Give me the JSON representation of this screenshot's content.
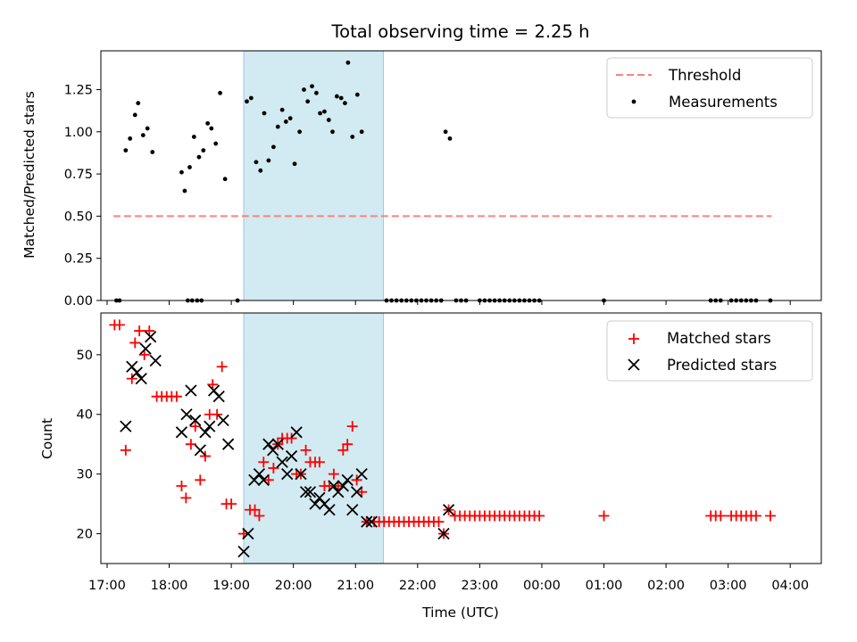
{
  "chart_data": {
    "title": "Total observing time = 2.25 h",
    "xlabel": "Time (UTC)",
    "x_unit": "hours since 17:00 UTC",
    "xlim": [
      -0.1,
      11.5
    ],
    "x_ticks": [
      0,
      1,
      2,
      3,
      4,
      5,
      6,
      7,
      8,
      9,
      10,
      11
    ],
    "x_tick_labels": [
      "17:00",
      "18:00",
      "19:00",
      "20:00",
      "21:00",
      "22:00",
      "23:00",
      "00:00",
      "01:00",
      "02:00",
      "03:00",
      "04:00"
    ],
    "shaded_span": [
      2.2,
      4.45
    ],
    "colors": {
      "shade": "#add8e6",
      "threshold": "#ff8080",
      "measurements": "#000000",
      "matched": "#ff0000",
      "predicted": "#000000"
    },
    "top": {
      "type": "scatter",
      "ylabel": "Matched/Predicted stars",
      "ylim": [
        0,
        1.48
      ],
      "y_ticks": [
        0,
        0.25,
        0.5,
        0.75,
        1.0,
        1.25
      ],
      "y_tick_labels": [
        "0.00",
        "0.25",
        "0.50",
        "0.75",
        "1.00",
        "1.25"
      ],
      "threshold": {
        "name": "Threshold",
        "y": 0.5,
        "x": [
          0.1,
          10.7
        ]
      },
      "measurements_name": "Measurements",
      "measurements": [
        [
          0.15,
          0
        ],
        [
          0.2,
          0
        ],
        [
          1.3,
          0
        ],
        [
          1.37,
          0
        ],
        [
          1.45,
          0
        ],
        [
          1.52,
          0
        ],
        [
          2.1,
          0
        ],
        [
          0.3,
          0.89
        ],
        [
          0.37,
          0.96
        ],
        [
          0.45,
          1.1
        ],
        [
          0.5,
          1.17
        ],
        [
          0.58,
          0.98
        ],
        [
          0.65,
          1.02
        ],
        [
          0.73,
          0.88
        ],
        [
          1.2,
          0.76
        ],
        [
          1.25,
          0.65
        ],
        [
          1.33,
          0.79
        ],
        [
          1.4,
          0.97
        ],
        [
          1.48,
          0.85
        ],
        [
          1.55,
          0.89
        ],
        [
          1.62,
          1.05
        ],
        [
          1.68,
          1.02
        ],
        [
          1.75,
          0.93
        ],
        [
          1.82,
          1.23
        ],
        [
          1.9,
          0.72
        ],
        [
          2.25,
          1.18
        ],
        [
          2.32,
          1.2
        ],
        [
          2.4,
          0.82
        ],
        [
          2.47,
          0.77
        ],
        [
          2.53,
          1.11
        ],
        [
          2.6,
          0.83
        ],
        [
          2.68,
          0.91
        ],
        [
          2.75,
          1.03
        ],
        [
          2.82,
          1.13
        ],
        [
          2.88,
          1.06
        ],
        [
          2.95,
          1.08
        ],
        [
          3.02,
          0.81
        ],
        [
          3.1,
          1.0
        ],
        [
          3.17,
          1.25
        ],
        [
          3.23,
          1.18
        ],
        [
          3.3,
          1.27
        ],
        [
          3.37,
          1.23
        ],
        [
          3.43,
          1.11
        ],
        [
          3.5,
          1.12
        ],
        [
          3.57,
          1.07
        ],
        [
          3.63,
          1.0
        ],
        [
          3.7,
          1.21
        ],
        [
          3.77,
          1.2
        ],
        [
          3.83,
          1.17
        ],
        [
          3.88,
          1.41
        ],
        [
          3.95,
          0.97
        ],
        [
          4.03,
          1.22
        ],
        [
          4.1,
          1.0
        ],
        [
          4.5,
          0
        ],
        [
          4.58,
          0
        ],
        [
          4.66,
          0
        ],
        [
          4.74,
          0
        ],
        [
          4.82,
          0
        ],
        [
          4.9,
          0
        ],
        [
          4.98,
          0
        ],
        [
          5.06,
          0
        ],
        [
          5.14,
          0
        ],
        [
          5.22,
          0
        ],
        [
          5.3,
          0
        ],
        [
          5.38,
          0
        ],
        [
          5.45,
          1.0
        ],
        [
          5.52,
          0.96
        ],
        [
          5.62,
          0
        ],
        [
          5.7,
          0
        ],
        [
          5.78,
          0
        ],
        [
          6.0,
          0
        ],
        [
          6.08,
          0
        ],
        [
          6.16,
          0
        ],
        [
          6.24,
          0
        ],
        [
          6.32,
          0
        ],
        [
          6.4,
          0
        ],
        [
          6.48,
          0
        ],
        [
          6.56,
          0
        ],
        [
          6.64,
          0
        ],
        [
          6.72,
          0
        ],
        [
          6.8,
          0
        ],
        [
          6.88,
          0
        ],
        [
          6.96,
          0
        ],
        [
          8.0,
          0
        ],
        [
          9.72,
          0
        ],
        [
          9.8,
          0
        ],
        [
          9.88,
          0
        ],
        [
          10.05,
          0
        ],
        [
          10.13,
          0
        ],
        [
          10.21,
          0
        ],
        [
          10.29,
          0
        ],
        [
          10.37,
          0
        ],
        [
          10.45,
          0
        ],
        [
          10.68,
          0
        ]
      ]
    },
    "bottom": {
      "type": "scatter",
      "ylabel": "Count",
      "ylim": [
        15,
        57
      ],
      "y_ticks": [
        20,
        30,
        40,
        50
      ],
      "y_tick_labels": [
        "20",
        "30",
        "40",
        "50"
      ],
      "series": [
        {
          "name": "Matched stars",
          "points": [
            [
              0.12,
              55
            ],
            [
              0.2,
              55
            ],
            [
              0.3,
              34
            ],
            [
              0.4,
              46
            ],
            [
              0.45,
              52
            ],
            [
              0.52,
              54
            ],
            [
              0.6,
              50
            ],
            [
              0.68,
              54
            ],
            [
              0.8,
              43
            ],
            [
              0.88,
              43
            ],
            [
              0.96,
              43
            ],
            [
              1.04,
              43
            ],
            [
              1.12,
              43
            ],
            [
              1.2,
              28
            ],
            [
              1.27,
              26
            ],
            [
              1.35,
              35
            ],
            [
              1.42,
              38
            ],
            [
              1.5,
              29
            ],
            [
              1.58,
              33
            ],
            [
              1.65,
              40
            ],
            [
              1.7,
              45
            ],
            [
              1.77,
              40
            ],
            [
              1.85,
              48
            ],
            [
              1.92,
              25
            ],
            [
              2.0,
              25
            ],
            [
              2.2,
              20
            ],
            [
              2.3,
              24
            ],
            [
              2.38,
              24
            ],
            [
              2.45,
              23
            ],
            [
              2.52,
              32
            ],
            [
              2.6,
              29
            ],
            [
              2.68,
              31
            ],
            [
              2.75,
              35
            ],
            [
              2.82,
              36
            ],
            [
              2.9,
              36
            ],
            [
              2.97,
              36
            ],
            [
              3.05,
              30
            ],
            [
              3.12,
              30
            ],
            [
              3.2,
              34
            ],
            [
              3.27,
              32
            ],
            [
              3.35,
              32
            ],
            [
              3.42,
              32
            ],
            [
              3.5,
              28
            ],
            [
              3.58,
              28
            ],
            [
              3.65,
              30
            ],
            [
              3.72,
              28
            ],
            [
              3.8,
              34
            ],
            [
              3.87,
              35
            ],
            [
              3.95,
              38
            ],
            [
              4.02,
              29
            ],
            [
              4.1,
              27
            ],
            [
              4.18,
              22
            ],
            [
              4.3,
              22
            ],
            [
              4.38,
              22
            ],
            [
              4.46,
              22
            ],
            [
              4.54,
              22
            ],
            [
              4.62,
              22
            ],
            [
              4.7,
              22
            ],
            [
              4.78,
              22
            ],
            [
              4.86,
              22
            ],
            [
              4.94,
              22
            ],
            [
              5.02,
              22
            ],
            [
              5.1,
              22
            ],
            [
              5.18,
              22
            ],
            [
              5.26,
              22
            ],
            [
              5.34,
              22
            ],
            [
              5.42,
              20
            ],
            [
              5.5,
              24
            ],
            [
              5.6,
              23
            ],
            [
              5.68,
              23
            ],
            [
              5.76,
              23
            ],
            [
              5.84,
              23
            ],
            [
              5.92,
              23
            ],
            [
              6.0,
              23
            ],
            [
              6.08,
              23
            ],
            [
              6.16,
              23
            ],
            [
              6.24,
              23
            ],
            [
              6.32,
              23
            ],
            [
              6.4,
              23
            ],
            [
              6.48,
              23
            ],
            [
              6.56,
              23
            ],
            [
              6.64,
              23
            ],
            [
              6.72,
              23
            ],
            [
              6.8,
              23
            ],
            [
              6.88,
              23
            ],
            [
              6.96,
              23
            ],
            [
              8.0,
              23
            ],
            [
              9.72,
              23
            ],
            [
              9.8,
              23
            ],
            [
              9.88,
              23
            ],
            [
              10.05,
              23
            ],
            [
              10.13,
              23
            ],
            [
              10.21,
              23
            ],
            [
              10.29,
              23
            ],
            [
              10.37,
              23
            ],
            [
              10.45,
              23
            ],
            [
              10.68,
              23
            ]
          ]
        },
        {
          "name": "Predicted stars",
          "points": [
            [
              0.3,
              38
            ],
            [
              0.4,
              48
            ],
            [
              0.48,
              47
            ],
            [
              0.55,
              46
            ],
            [
              0.62,
              51
            ],
            [
              0.7,
              53
            ],
            [
              0.78,
              49
            ],
            [
              1.2,
              37
            ],
            [
              1.28,
              40
            ],
            [
              1.35,
              44
            ],
            [
              1.42,
              39
            ],
            [
              1.5,
              34
            ],
            [
              1.58,
              37
            ],
            [
              1.65,
              38
            ],
            [
              1.72,
              44
            ],
            [
              1.8,
              43
            ],
            [
              1.87,
              39
            ],
            [
              1.95,
              35
            ],
            [
              2.2,
              17
            ],
            [
              2.27,
              20
            ],
            [
              2.37,
              29
            ],
            [
              2.45,
              30
            ],
            [
              2.52,
              29
            ],
            [
              2.6,
              35
            ],
            [
              2.67,
              34
            ],
            [
              2.75,
              35
            ],
            [
              2.82,
              32
            ],
            [
              2.9,
              30
            ],
            [
              2.97,
              33
            ],
            [
              3.05,
              37
            ],
            [
              3.12,
              30
            ],
            [
              3.2,
              27
            ],
            [
              3.27,
              27
            ],
            [
              3.35,
              25
            ],
            [
              3.42,
              26
            ],
            [
              3.5,
              25
            ],
            [
              3.58,
              24
            ],
            [
              3.65,
              28
            ],
            [
              3.72,
              27
            ],
            [
              3.8,
              28
            ],
            [
              3.87,
              29
            ],
            [
              3.95,
              24
            ],
            [
              4.02,
              27
            ],
            [
              4.1,
              30
            ],
            [
              4.18,
              22
            ],
            [
              4.26,
              22
            ],
            [
              5.42,
              20
            ],
            [
              5.5,
              24
            ]
          ]
        }
      ]
    }
  }
}
